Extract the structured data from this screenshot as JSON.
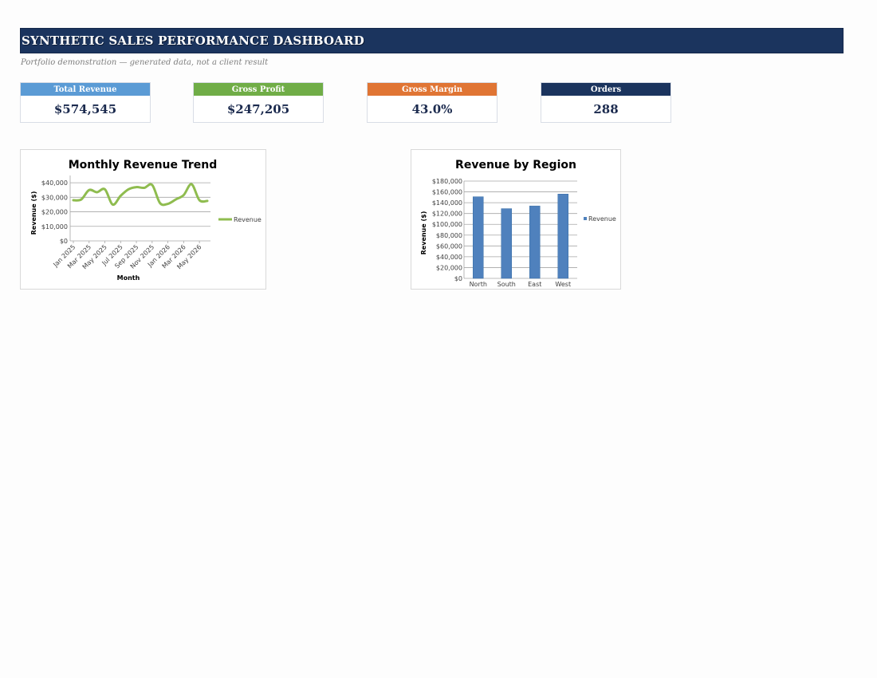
{
  "header": {
    "title": "SYNTHETIC SALES PERFORMANCE DASHBOARD",
    "subtitle": "Portfolio demonstration — generated data, not a client result"
  },
  "kpis": [
    {
      "label": "Total Revenue",
      "value": "$574,545",
      "color": "#5b9bd5"
    },
    {
      "label": "Gross Profit",
      "value": "$247,205",
      "color": "#70ad47"
    },
    {
      "label": "Gross Margin",
      "value": "43.0%",
      "color": "#e07534"
    },
    {
      "label": "Orders",
      "value": "288",
      "color": "#1b345e"
    }
  ],
  "chart_data": [
    {
      "type": "line",
      "title": "Monthly Revenue Trend",
      "xlabel": "Month",
      "ylabel": "Revenue ($)",
      "x": [
        "Jan 2025",
        "Feb 2025",
        "Mar 2025",
        "Apr 2025",
        "May 2025",
        "Jun 2025",
        "Jul 2025",
        "Aug 2025",
        "Sep 2025",
        "Oct 2025",
        "Nov 2025",
        "Dec 2025",
        "Jan 2026",
        "Feb 2026",
        "Mar 2026",
        "Apr 2026",
        "May 2026",
        "Jun 2026"
      ],
      "tick_labels": [
        "Jan 2025",
        "Mar 2025",
        "May 2025",
        "Jul 2025",
        "Sep 2025",
        "Nov 2025",
        "Jan 2026",
        "Mar 2026",
        "May 2026"
      ],
      "series": [
        {
          "name": "Revenue",
          "color": "#8fbc4f",
          "values": [
            28000,
            28500,
            35000,
            33500,
            35500,
            25000,
            31000,
            35500,
            37000,
            36500,
            38500,
            26000,
            25500,
            28500,
            31500,
            39000,
            28000,
            27500
          ]
        }
      ],
      "ylim": [
        0,
        45000
      ],
      "yticks": [
        {
          "v": 0,
          "label": "$0"
        },
        {
          "v": 10000,
          "label": "$10,000"
        },
        {
          "v": 20000,
          "label": "$20,000"
        },
        {
          "v": 30000,
          "label": "$30,000"
        },
        {
          "v": 40000,
          "label": "$40,000"
        }
      ],
      "grid": true,
      "legend": "right"
    },
    {
      "type": "bar",
      "title": "Revenue by Region",
      "xlabel": "",
      "ylabel": "Revenue ($)",
      "categories": [
        "North",
        "South",
        "East",
        "West"
      ],
      "series": [
        {
          "name": "Revenue",
          "color": "#4f81bd",
          "values": [
            151000,
            129000,
            134000,
            156000
          ]
        }
      ],
      "ylim": [
        0,
        180000
      ],
      "yticks": [
        {
          "v": 0,
          "label": "$0"
        },
        {
          "v": 20000,
          "label": "$20,000"
        },
        {
          "v": 40000,
          "label": "$40,000"
        },
        {
          "v": 60000,
          "label": "$60,000"
        },
        {
          "v": 80000,
          "label": "$80,000"
        },
        {
          "v": 100000,
          "label": "$100,000"
        },
        {
          "v": 120000,
          "label": "$120,000"
        },
        {
          "v": 140000,
          "label": "$140,000"
        },
        {
          "v": 160000,
          "label": "$160,000"
        },
        {
          "v": 180000,
          "label": "$180,000"
        }
      ],
      "grid": true,
      "legend": "right"
    }
  ]
}
